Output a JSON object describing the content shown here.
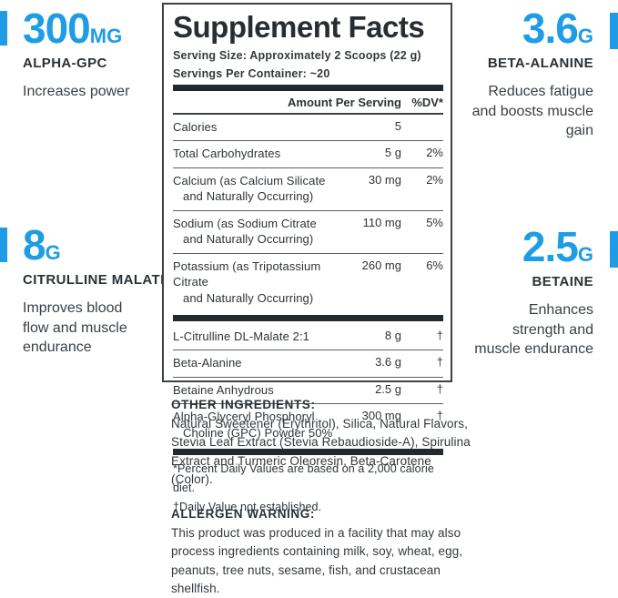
{
  "colors": {
    "accent": "#1e9de6",
    "text_dark": "#2e3338"
  },
  "stats": {
    "alpha_gpc": {
      "value": "300",
      "unit": "MG",
      "name": "ALPHA-GPC",
      "desc": "Increases power"
    },
    "beta_alanine": {
      "value": "3.6",
      "unit": "G",
      "name": "BETA-ALANINE",
      "desc": "Reduces fatigue\nand boosts muscle\ngain"
    },
    "citrulline": {
      "value": "8",
      "unit": "G",
      "name": "CITRULLINE MALATE",
      "desc": "Improves blood\nflow and muscle\nendurance"
    },
    "betaine": {
      "value": "2.5",
      "unit": "G",
      "name": "BETAINE",
      "desc": "Enhances\nstrength and\nmuscle endurance"
    }
  },
  "panel": {
    "title": "Supplement Facts",
    "serving_size": "Serving Size: Approximately 2 Scoops (22 g)",
    "servings_per_container": "Servings Per Container: ~20",
    "columns": {
      "amount": "Amount Per Serving",
      "dv": "%DV*"
    },
    "rows": [
      {
        "name": "Calories",
        "amount": "5",
        "dv": ""
      },
      {
        "name": "Total Carbohydrates",
        "amount": "5 g",
        "dv": "2%"
      },
      {
        "name": "Calcium (as Calcium Silicate",
        "name2": "and Naturally Occurring)",
        "amount": "30 mg",
        "dv": "2%"
      },
      {
        "name": "Sodium (as Sodium Citrate",
        "name2": "and Naturally Occurring)",
        "amount": "110 mg",
        "dv": "5%"
      },
      {
        "name": "Potassium (as Tripotassium Citrate",
        "name2": "and Naturally Occurring)",
        "amount": "260 mg",
        "dv": "6%"
      },
      {
        "name": "L-Citrulline DL-Malate 2:1",
        "amount": "8 g",
        "dv": "†"
      },
      {
        "name": "Beta-Alanine",
        "amount": "3.6 g",
        "dv": "†"
      },
      {
        "name": "Betaine Anhydrous",
        "amount": "2.5 g",
        "dv": "†"
      },
      {
        "name": "Alpha-Glyceryl Phosphoryl",
        "name2": "Choline (GPC) Powder 50%",
        "amount": "300 mg",
        "dv": "†"
      }
    ],
    "footnotes": "*Percent Daily Values are based on a 2,000 calorie diet.\n†Daily Value not established."
  },
  "other_ingredients": {
    "heading": "OTHER INGREDIENTS:",
    "body": "Natural Sweetener (Erythritol), Silica, Natural Flavors,\nStevia Leaf Extract (Stevia Rebaudioside-A), Spirulina\nExtract and Turmeric Oleoresin, Beta-Carotene (Color)."
  },
  "allergen_warning": {
    "heading": "ALLERGEN WARNING:",
    "body": "This product was produced in a facility that may also\nprocess ingredients containing milk, soy, wheat, egg,\npeanuts, tree nuts, sesame, fish, and crustacean shellfish."
  }
}
